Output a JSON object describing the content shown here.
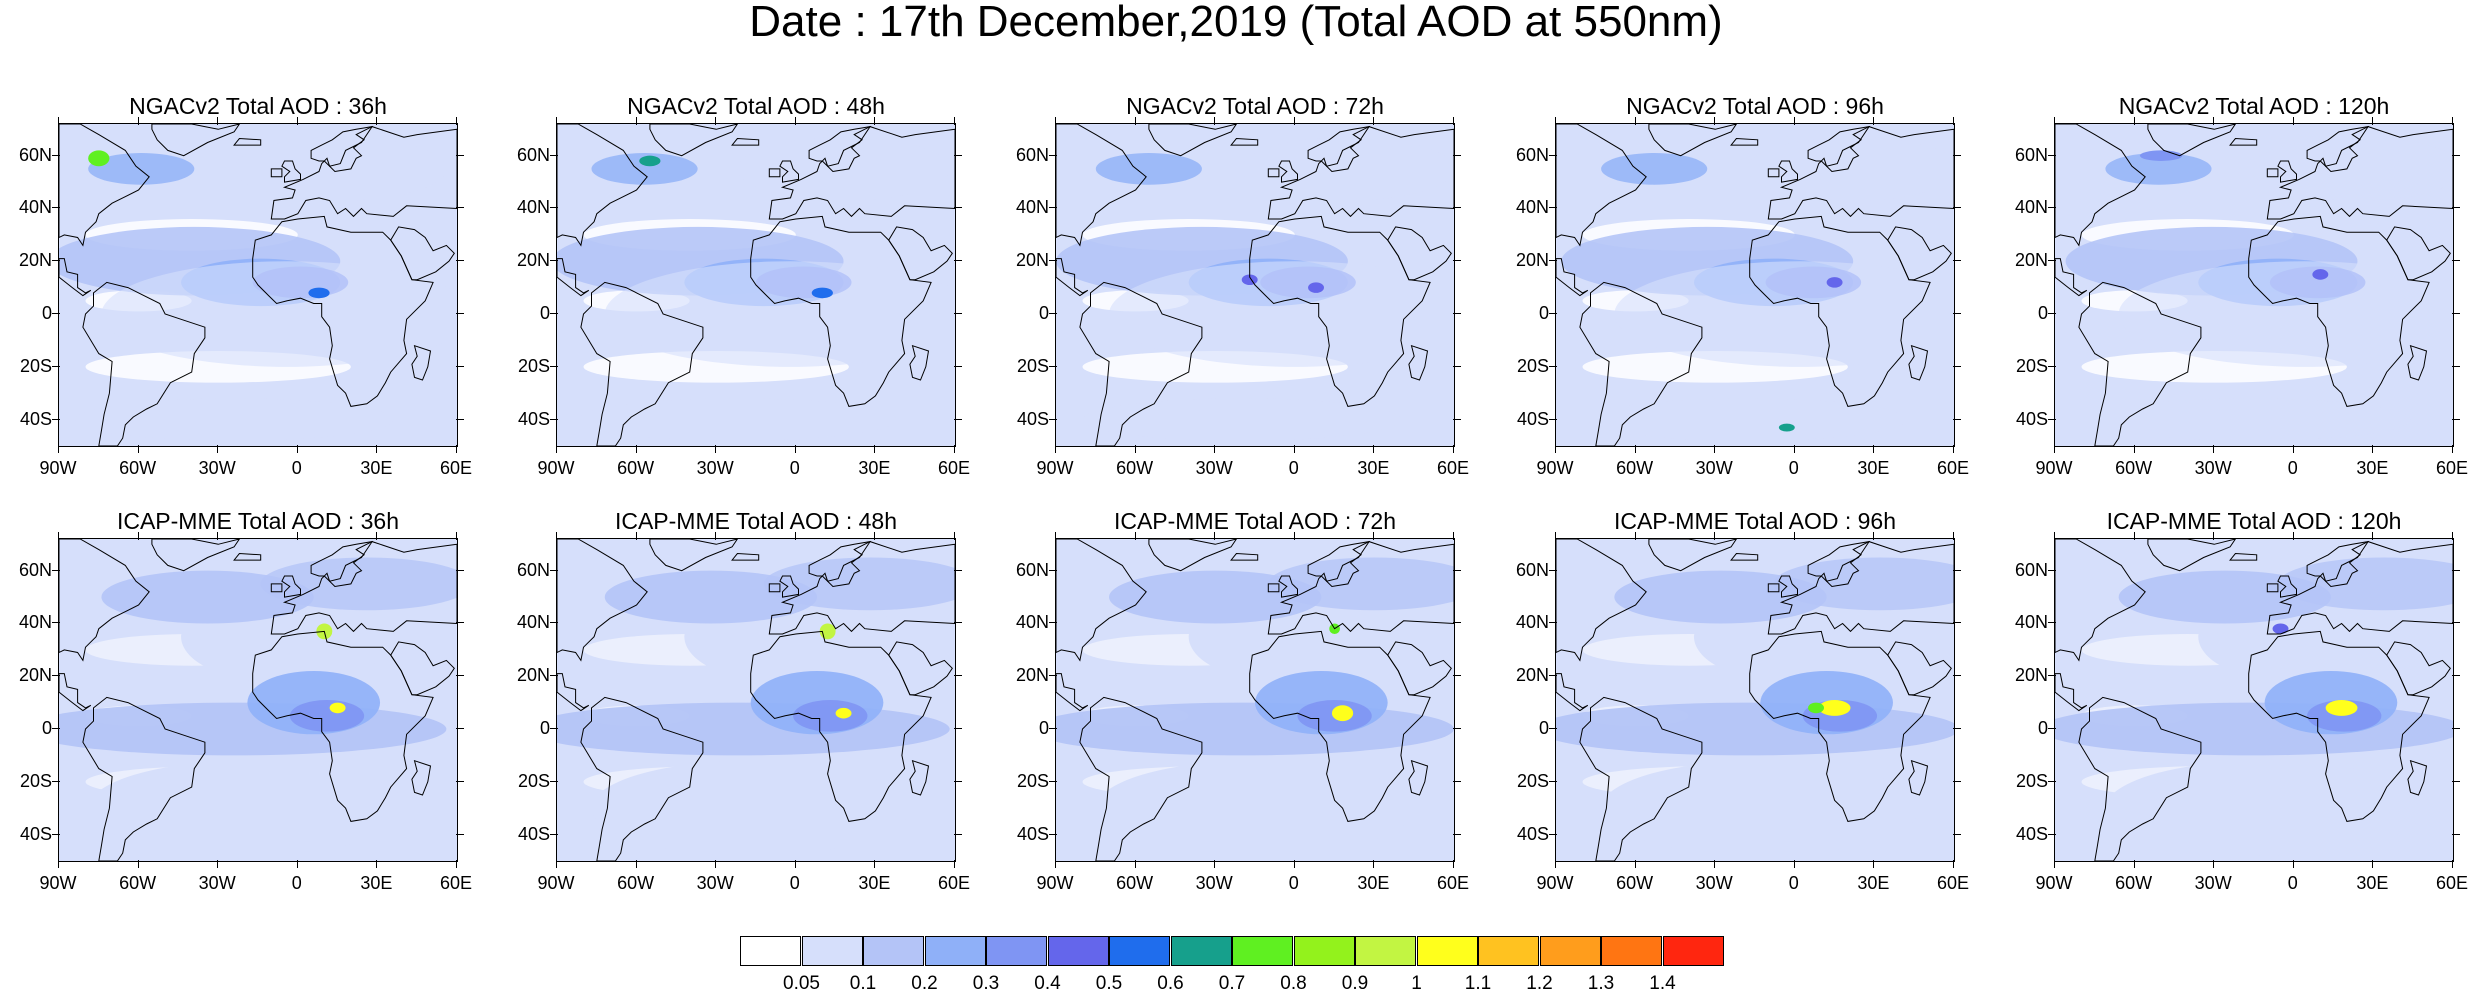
{
  "title": "Date : 17th December,2019 (Total AOD at 550nm)",
  "lat_labels": [
    "60N",
    "40N",
    "20N",
    "0",
    "20S",
    "40S"
  ],
  "lon_labels": [
    "90W",
    "60W",
    "30W",
    "0",
    "30E",
    "60E"
  ],
  "rows": [
    {
      "model": "NGACv2",
      "panels": [
        {
          "title": "NGACv2 Total AOD : 36h",
          "forecast_hour": 36
        },
        {
          "title": "NGACv2 Total AOD : 48h",
          "forecast_hour": 48
        },
        {
          "title": "NGACv2 Total AOD : 72h",
          "forecast_hour": 72
        },
        {
          "title": "NGACv2 Total AOD : 96h",
          "forecast_hour": 96
        },
        {
          "title": "NGACv2 Total AOD : 120h",
          "forecast_hour": 120
        }
      ]
    },
    {
      "model": "ICAP-MME",
      "panels": [
        {
          "title": "ICAP-MME Total AOD : 36h",
          "forecast_hour": 36
        },
        {
          "title": "ICAP-MME Total AOD : 48h",
          "forecast_hour": 48
        },
        {
          "title": "ICAP-MME Total AOD : 72h",
          "forecast_hour": 72
        },
        {
          "title": "ICAP-MME Total AOD : 96h",
          "forecast_hour": 96
        },
        {
          "title": "ICAP-MME Total AOD : 120h",
          "forecast_hour": 120
        }
      ]
    }
  ],
  "colorbar": {
    "labels": [
      "0.05",
      "0.1",
      "0.2",
      "0.3",
      "0.4",
      "0.5",
      "0.6",
      "0.7",
      "0.8",
      "0.9",
      "1",
      "1.1",
      "1.2",
      "1.3",
      "1.4"
    ],
    "colors": [
      "#ffffff",
      "#d6dffb",
      "#b4c4f7",
      "#8fb0f8",
      "#7f95f3",
      "#6466eb",
      "#1f6ded",
      "#16a08c",
      "#5ff021",
      "#93f21c",
      "#c2f542",
      "#ffff1c",
      "#ffc220",
      "#ff9d1c",
      "#ff7512",
      "#ff260f"
    ]
  },
  "map_extent": {
    "lon_min": -90,
    "lon_max": 60,
    "lat_min": -50,
    "lat_max": 72
  },
  "colors": {
    "land": "#ffffff",
    "coast": "#000000",
    "background": "#ffffff"
  }
}
